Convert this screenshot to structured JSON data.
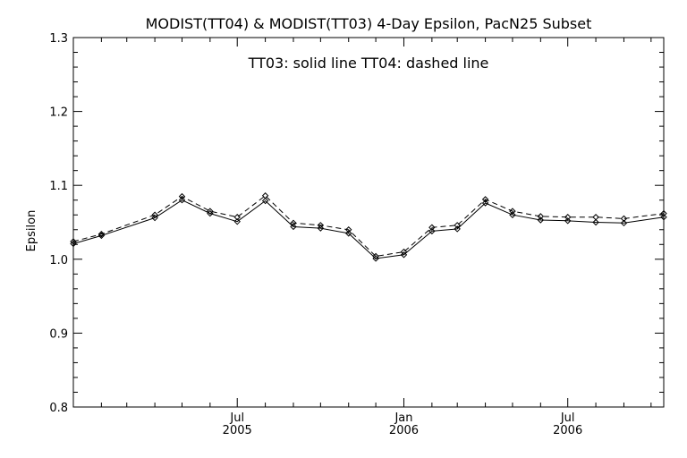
{
  "chart_data": {
    "type": "line",
    "title": "MODIST(TT04) & MODIST(TT03) 4-Day Epsilon, PacN25 Subset",
    "annotation": "TT03: solid line   TT04: dashed line",
    "xlabel": "",
    "ylabel": "Epsilon",
    "ylim": [
      0.8,
      1.3
    ],
    "xlim": [
      "2005-01-01",
      "2006-10-15"
    ],
    "yticks": [
      "0.8",
      "0.9",
      "1.0",
      "1.1",
      "1.2",
      "1.3"
    ],
    "yticks_values": [
      0.8,
      0.9,
      1.0,
      1.1,
      1.2,
      1.3
    ],
    "xticks": [
      {
        "date": "2005-07-01",
        "label_top": "Jul",
        "label_bottom": "2005"
      },
      {
        "date": "2006-01-01",
        "label_top": "Jan",
        "label_bottom": "2006"
      },
      {
        "date": "2006-07-01",
        "label_top": "Jul",
        "label_bottom": "2006"
      }
    ],
    "minor_xticks": [
      "2005-02-01",
      "2005-03-01",
      "2005-04-01",
      "2005-05-01",
      "2005-06-01",
      "2005-08-01",
      "2005-09-01",
      "2005-10-01",
      "2005-11-01",
      "2005-12-01",
      "2006-02-01",
      "2006-03-01",
      "2006-04-01",
      "2006-05-01",
      "2006-06-01",
      "2006-08-01",
      "2006-09-01",
      "2006-10-01"
    ],
    "grid": false,
    "series": [
      {
        "name": "TT03",
        "line_style": "solid",
        "color": "#000000",
        "x": [
          "2005-01-01",
          "2005-02-01",
          "2005-04-01",
          "2005-05-01",
          "2005-06-01",
          "2005-07-01",
          "2005-08-01",
          "2005-09-01",
          "2005-10-01",
          "2005-11-01",
          "2005-12-01",
          "2006-01-01",
          "2006-02-01",
          "2006-03-01",
          "2006-04-01",
          "2006-05-01",
          "2006-06-01",
          "2006-07-01",
          "2006-08-01",
          "2006-09-01",
          "2006-10-15"
        ],
        "values": [
          1.021,
          1.032,
          1.056,
          1.08,
          1.062,
          1.051,
          1.079,
          1.044,
          1.042,
          1.035,
          1.001,
          1.006,
          1.038,
          1.041,
          1.076,
          1.06,
          1.053,
          1.052,
          1.05,
          1.049,
          1.057
        ]
      },
      {
        "name": "TT04",
        "line_style": "dashed",
        "color": "#000000",
        "x": [
          "2005-01-01",
          "2005-02-01",
          "2005-04-01",
          "2005-05-01",
          "2005-06-01",
          "2005-07-01",
          "2005-08-01",
          "2005-09-01",
          "2005-10-01",
          "2005-11-01",
          "2005-12-01",
          "2006-01-01",
          "2006-02-01",
          "2006-03-01",
          "2006-04-01",
          "2006-05-01",
          "2006-06-01",
          "2006-07-01",
          "2006-08-01",
          "2006-09-01",
          "2006-10-15"
        ],
        "values": [
          1.024,
          1.034,
          1.06,
          1.085,
          1.065,
          1.057,
          1.086,
          1.049,
          1.046,
          1.04,
          1.004,
          1.01,
          1.043,
          1.046,
          1.081,
          1.065,
          1.058,
          1.057,
          1.057,
          1.055,
          1.062
        ]
      }
    ]
  }
}
